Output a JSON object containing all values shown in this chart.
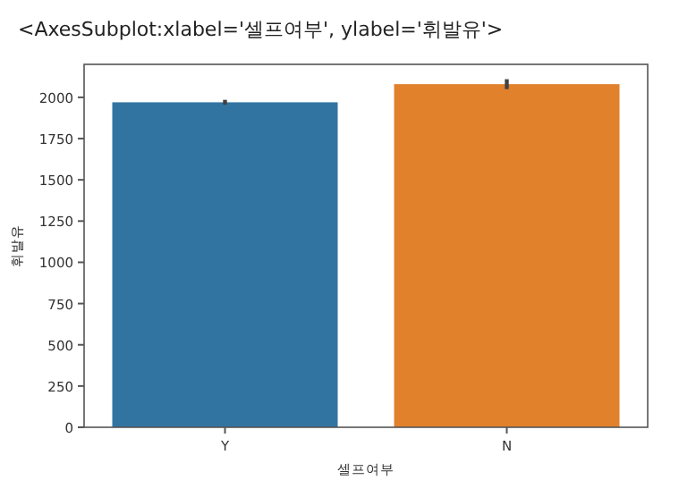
{
  "chart_data": {
    "type": "bar",
    "xlabel": "셀프여부",
    "ylabel": "휘발유",
    "annotations": [
      "<AxesSubplot:xlabel='셀프여부', ylabel='휘발유'>"
    ],
    "categories": [
      "Y",
      "N"
    ],
    "values": [
      1970,
      2080
    ],
    "colors": [
      "#3274a1",
      "#e1812c"
    ],
    "errors": [
      15,
      30
    ],
    "ylim": [
      0,
      2200
    ],
    "yticks": [
      0,
      250,
      500,
      750,
      1000,
      1250,
      1500,
      1750,
      2000
    ]
  }
}
